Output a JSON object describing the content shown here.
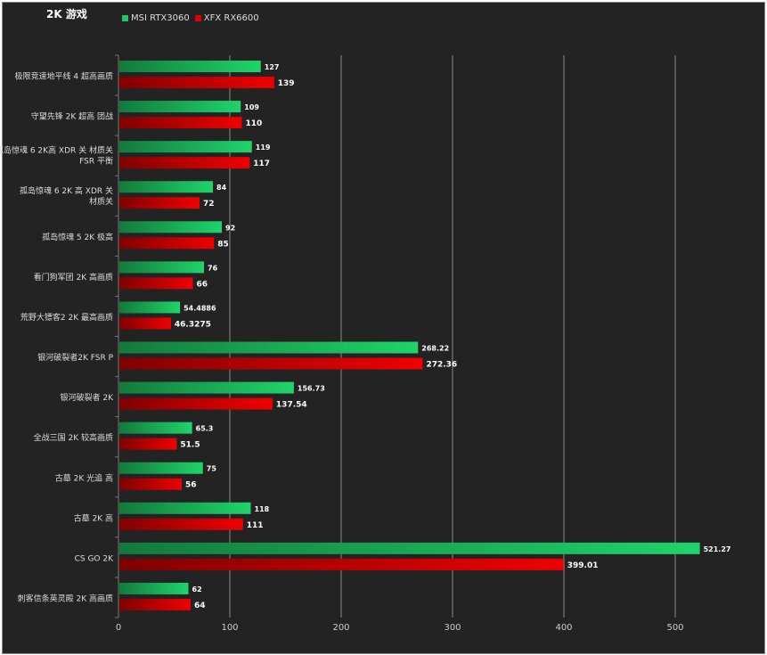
{
  "chart_data": {
    "type": "bar",
    "orientation": "horizontal",
    "title": "2K 游戏",
    "categories": [
      "极限竞速地平线 4 超高画质",
      "守望先锋 2K 超高 团战",
      "孤岛惊魂 6 2K高 XDR 关 材质关 FSR 平衡",
      "孤岛惊魂 6 2K 高 XDR 关 材质关",
      "孤岛惊魂 5 2K 极高",
      "看门狗军团 2K 高画质",
      "荒野大镖客2 2K 最高画质",
      "银河破裂者2K FSR P",
      "银河破裂者 2K",
      "全战三国 2K 较高画质",
      "古墓 2K 光追 高",
      "古墓 2K 高",
      "CS GO 2K",
      "刺客信条英灵殿 2K 高画质"
    ],
    "series": [
      {
        "name": "MSI RTX3060",
        "color": "#1ec864",
        "labels": [
          "127",
          "109",
          "119",
          "84",
          "92",
          "76",
          "54.4886",
          "268.22",
          "156.73",
          "65.3",
          "75",
          "118",
          "521.27",
          "62"
        ],
        "values": [
          127,
          109,
          119,
          84,
          92,
          76,
          54.4886,
          268.22,
          156.73,
          65.3,
          75,
          118,
          521.27,
          62
        ]
      },
      {
        "name": "XFX RX6600",
        "color": "#e00000",
        "labels": [
          "139",
          "110",
          "117",
          "72",
          "85",
          "66",
          "46.3275",
          "272.36",
          "137.54",
          "51.5",
          "56",
          "111",
          "399.01",
          "64"
        ],
        "values": [
          139,
          110,
          117,
          72,
          85,
          66,
          46.3275,
          272.36,
          137.54,
          51.5,
          56,
          111,
          399.01,
          64
        ]
      }
    ],
    "xticks": [
      "0",
      "100",
      "200",
      "300",
      "400",
      "500"
    ],
    "xlim": [
      0,
      580
    ],
    "grid": true,
    "legend": "top-left"
  }
}
